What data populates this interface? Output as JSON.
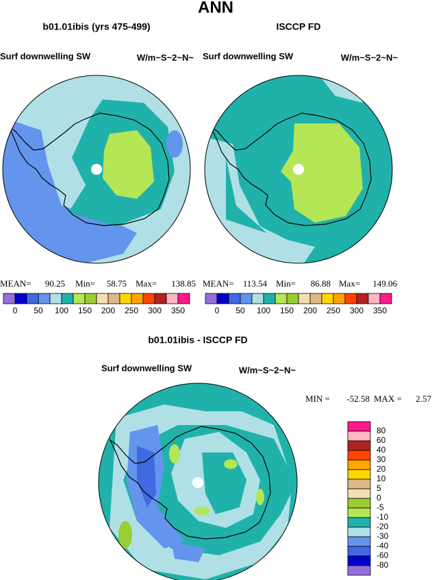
{
  "title": "ANN",
  "panels": [
    {
      "title": "b01.01ibis (yrs 475-499)",
      "variable": "Surf downwelling SW",
      "units": "W/m~S~2~N~",
      "mean_label": "MEAN=",
      "mean": 90.25,
      "min_label": "Min=",
      "min": 58.75,
      "max_label": "Max=",
      "max": 138.85
    },
    {
      "title": "ISCCP FD",
      "variable": "Surf downwelling SW",
      "units": "W/m~S~2~N~",
      "mean_label": "MEAN=",
      "mean": 113.54,
      "min_label": "Min=",
      "min": 86.88,
      "max_label": "Max=",
      "max": 149.06
    }
  ],
  "difference": {
    "title": "b01.01ibis - ISCCP FD",
    "variable": "Surf downwelling SW",
    "units": "W/m~S~2~N~",
    "min_label": "MIN =",
    "min": -52.58,
    "max_label": "MAX =",
    "max": 2.57
  },
  "colorbar": {
    "colors": [
      "#9370db",
      "#0000cd",
      "#4169e1",
      "#6495ed",
      "#b0e0e6",
      "#20b2aa",
      "#b5e655",
      "#9acd32",
      "#f5deb3",
      "#deb887",
      "#ffd700",
      "#ffa500",
      "#ff4500",
      "#b22222",
      "#ffb6c1",
      "#ff1a8c"
    ],
    "labels": [
      0,
      50,
      100,
      150,
      200,
      250,
      300,
      350
    ]
  },
  "difference_colorbar": {
    "colors": [
      "#ff1a8c",
      "#ffb6c1",
      "#b22222",
      "#ff4500",
      "#ffa500",
      "#ffd700",
      "#deb887",
      "#f5deb3",
      "#9acd32",
      "#b5e655",
      "#20b2aa",
      "#b0e0e6",
      "#6495ed",
      "#4169e1",
      "#0000cd",
      "#9370db"
    ],
    "labels": [
      80,
      60,
      40,
      30,
      20,
      10,
      5,
      0,
      -5,
      -10,
      -20,
      -30,
      -40,
      -60,
      -80
    ]
  }
}
